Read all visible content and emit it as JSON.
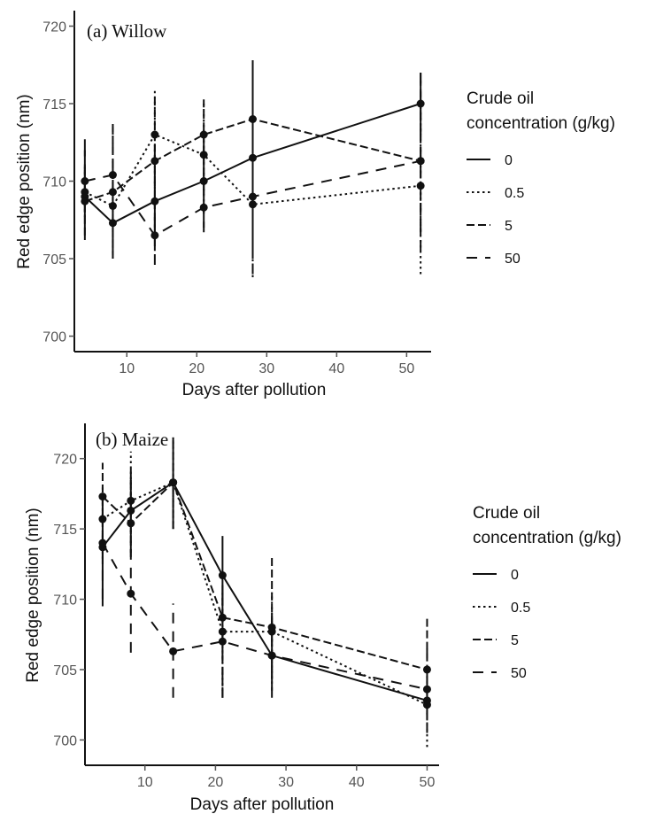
{
  "chart_data": [
    {
      "type": "line",
      "title": "(a) Willow",
      "xlabel": "Days after pollution",
      "ylabel": "Red edge position (nm)",
      "xlim": [
        2.5,
        53.5
      ],
      "ylim": [
        699,
        721
      ],
      "xticks": [
        10,
        20,
        30,
        40,
        50
      ],
      "yticks": [
        700,
        705,
        710,
        715,
        720
      ],
      "grid": false,
      "legend": {
        "title_lines": [
          "Crude oil",
          "concentration (g/kg)"
        ],
        "placement": "right"
      },
      "series": [
        {
          "name": "0",
          "x": [
            4,
            8,
            14,
            21,
            28,
            52
          ],
          "y": [
            709.0,
            707.3,
            708.7,
            710.0,
            711.5,
            715.0
          ],
          "err_low": [
            706.2,
            705.2,
            705.5,
            707.0,
            705.0,
            713.0
          ],
          "err_high": [
            712.7,
            709.7,
            712.3,
            713.3,
            717.8,
            717.0
          ]
        },
        {
          "name": "0.5",
          "x": [
            4,
            8,
            14,
            21,
            28,
            52
          ],
          "y": [
            709.3,
            708.4,
            713.0,
            711.7,
            708.5,
            709.7
          ],
          "err_low": [
            707.7,
            705.0,
            709.5,
            708.0,
            703.8,
            704.0
          ],
          "err_high": [
            711.0,
            711.4,
            716.0,
            715.0,
            713.2,
            715.3
          ]
        },
        {
          "name": "5",
          "x": [
            4,
            8,
            14,
            21,
            28,
            52
          ],
          "y": [
            708.7,
            709.3,
            711.3,
            713.0,
            714.0,
            711.3
          ],
          "err_low": [
            706.5,
            705.0,
            706.7,
            710.3,
            708.0,
            706.5
          ],
          "err_high": [
            710.8,
            713.5,
            715.5,
            715.3,
            717.0,
            716.5
          ]
        },
        {
          "name": "50",
          "x": [
            4,
            8,
            14,
            21,
            28,
            52
          ],
          "y": [
            710.0,
            710.4,
            706.5,
            708.3,
            709.0,
            711.3
          ],
          "err_low": [
            708.0,
            707.0,
            704.6,
            706.7,
            704.0,
            705.5
          ],
          "err_high": [
            712.0,
            714.2,
            708.5,
            710.0,
            714.0,
            717.0
          ]
        }
      ]
    },
    {
      "type": "line",
      "title": "(b) Maize",
      "xlabel": "Days after pollution",
      "ylabel": "Red edge position (nm)",
      "xlim": [
        1.5,
        51.7
      ],
      "ylim": [
        698.2,
        722.5
      ],
      "xticks": [
        10,
        20,
        30,
        40,
        50
      ],
      "yticks": [
        700,
        705,
        710,
        715,
        720
      ],
      "grid": false,
      "legend": {
        "title_lines": [
          "Crude oil",
          "concentration (g/kg)"
        ],
        "placement": "right"
      },
      "series": [
        {
          "name": "0",
          "x": [
            4,
            8,
            14,
            21,
            28,
            50
          ],
          "y": [
            713.7,
            716.3,
            718.3,
            711.7,
            706.0,
            702.8
          ],
          "err_low": [
            709.5,
            713.3,
            715.0,
            708.5,
            703.5,
            701.5
          ],
          "err_high": [
            717.0,
            719.3,
            721.5,
            714.5,
            708.5,
            704.5
          ]
        },
        {
          "name": "0.5",
          "x": [
            4,
            8,
            14,
            21,
            28,
            50
          ],
          "y": [
            715.7,
            717.0,
            718.3,
            707.7,
            707.7,
            702.5
          ],
          "err_low": [
            712.5,
            714.0,
            715.0,
            703.5,
            704.0,
            699.5
          ],
          "err_high": [
            718.0,
            720.5,
            721.5,
            710.5,
            710.5,
            705.5
          ]
        },
        {
          "name": "5",
          "x": [
            4,
            8,
            14,
            21,
            28,
            50
          ],
          "y": [
            717.3,
            715.4,
            718.3,
            708.7,
            708.0,
            705.0
          ],
          "err_low": [
            713.5,
            713.0,
            715.0,
            703.0,
            705.0,
            701.5
          ],
          "err_high": [
            719.7,
            718.5,
            721.5,
            711.0,
            713.0,
            708.8
          ]
        },
        {
          "name": "50",
          "x": [
            4,
            8,
            14,
            21,
            28,
            50
          ],
          "y": [
            714.0,
            710.4,
            706.3,
            707.0,
            706.0,
            703.6
          ],
          "err_low": [
            710.0,
            706.2,
            703.0,
            703.0,
            703.0,
            700.5
          ],
          "err_high": [
            717.5,
            714.0,
            709.7,
            711.0,
            709.0,
            706.5
          ]
        }
      ]
    }
  ],
  "styles": {
    "line_color": "#111111",
    "tick_color": "#555555",
    "dash_patterns": {
      "0": "",
      "0.5": "2.5,3.5",
      "5": "9,4",
      "50": "12,9"
    }
  }
}
